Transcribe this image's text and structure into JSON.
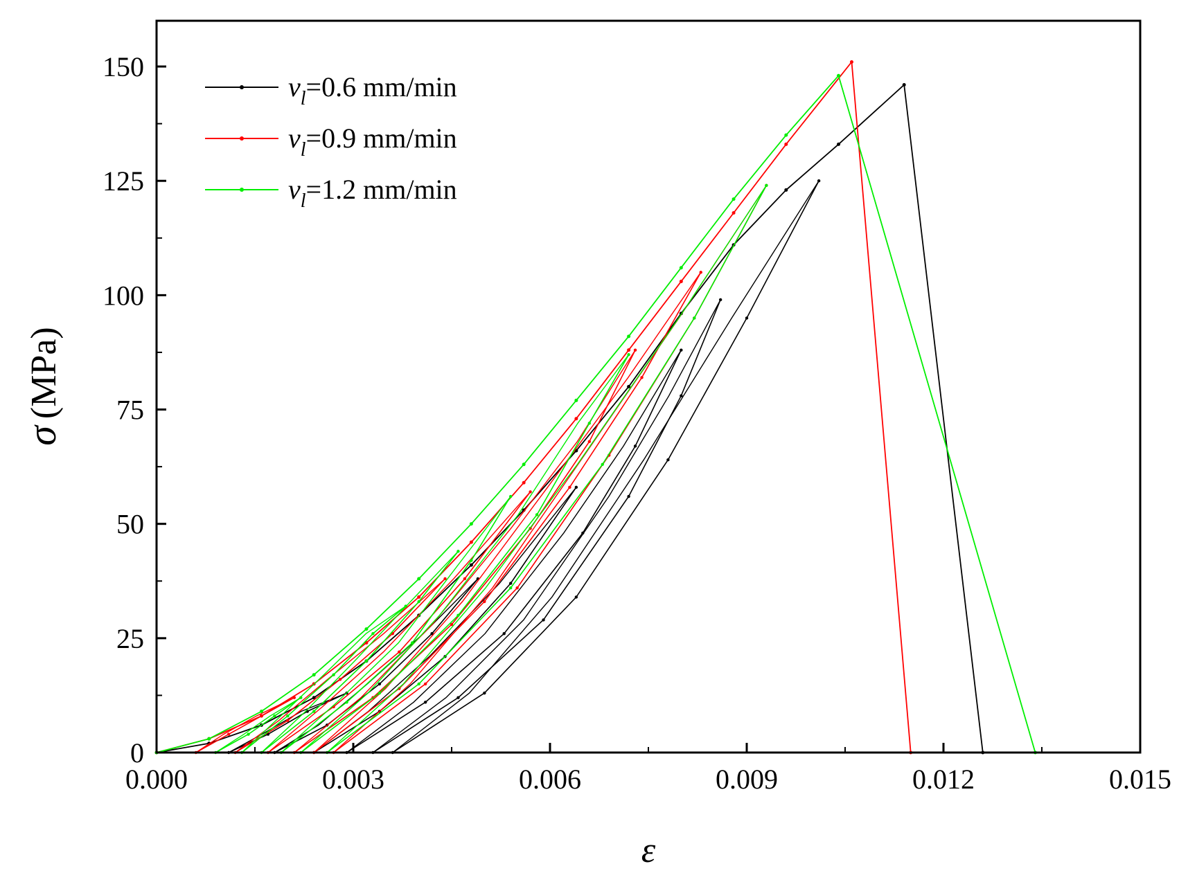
{
  "chart_data": {
    "type": "line",
    "title": "",
    "xlabel": "ε",
    "ylabel_symbol": "σ",
    "ylabel_unit": "(MPa)",
    "xlim": [
      0,
      0.015
    ],
    "ylim": [
      0,
      160
    ],
    "x_ticks": [
      0,
      0.003,
      0.006,
      0.009,
      0.012,
      0.015
    ],
    "x_tick_labels": [
      "0.000",
      "0.003",
      "0.006",
      "0.009",
      "0.012",
      "0.015"
    ],
    "y_ticks": [
      0,
      25,
      50,
      75,
      100,
      125,
      150
    ],
    "y_tick_labels": [
      "0",
      "25",
      "50",
      "75",
      "100",
      "125",
      "150"
    ],
    "legend_position": "top-left",
    "series": [
      {
        "name_symbol": "v",
        "name_sub": "l",
        "name_value": "=0.6 mm/min",
        "color": "#000000",
        "x": [
          0,
          0.0008,
          0.0016,
          0.0024,
          0.0032,
          0.004,
          0.0048,
          0.0056,
          0.0064,
          0.0072,
          0.008,
          0.0088,
          0.0096,
          0.0104,
          0.0114,
          0.0126
        ],
        "y": [
          0,
          2,
          6,
          12,
          20,
          30,
          41,
          53,
          66,
          80,
          96,
          111,
          123,
          133,
          146,
          0
        ],
        "cycles": [
          {
            "x": [
              0.0011,
              0.0017,
              0.0023,
              0.0029
            ],
            "y": [
              0,
              4,
              9,
              13
            ],
            "peak": [
              0.0029,
              13
            ]
          },
          {
            "x": [
              0.0018,
              0.0026,
              0.0034,
              0.0042,
              0.0049
            ],
            "y": [
              0,
              6,
              15,
              26,
              38
            ],
            "peak": [
              0.0049,
              38
            ]
          },
          {
            "x": [
              0.0024,
              0.0034,
              0.0044,
              0.0054,
              0.0064
            ],
            "y": [
              0,
              9,
              21,
              37,
              58
            ],
            "peak": [
              0.0064,
              58
            ]
          },
          {
            "x": [
              0.0029,
              0.0041,
              0.0053,
              0.0065,
              0.0073,
              0.008
            ],
            "y": [
              0,
              11,
              26,
              48,
              67,
              88
            ],
            "peak": [
              0.008,
              88
            ]
          },
          {
            "x": [
              0.0033,
              0.0046,
              0.0059,
              0.0072,
              0.008,
              0.0086
            ],
            "y": [
              0,
              12,
              29,
              56,
              78,
              99
            ],
            "peak": [
              0.0086,
              99
            ]
          },
          {
            "x": [
              0.0036,
              0.005,
              0.0064,
              0.0078,
              0.009,
              0.0101
            ],
            "y": [
              0,
              13,
              34,
              64,
              95,
              125
            ],
            "peak": [
              0.0101,
              125
            ]
          }
        ]
      },
      {
        "name_symbol": "v",
        "name_sub": "l",
        "name_value": "=0.9 mm/min",
        "color": "#ff0000",
        "x": [
          0,
          0.0008,
          0.0016,
          0.0024,
          0.0032,
          0.004,
          0.0048,
          0.0056,
          0.0064,
          0.0072,
          0.008,
          0.0088,
          0.0096,
          0.0106,
          0.0115
        ],
        "y": [
          0,
          3,
          8,
          15,
          24,
          34,
          46,
          59,
          73,
          88,
          103,
          118,
          133,
          151,
          0
        ],
        "cycles": [
          {
            "x": [
              0.0006,
              0.0011,
              0.0016,
              0.0021
            ],
            "y": [
              0,
              4,
              8,
              12
            ],
            "peak": [
              0.0021,
              12
            ]
          },
          {
            "x": [
              0.0012,
              0.002,
              0.0028,
              0.0036,
              0.0044
            ],
            "y": [
              0,
              7,
              16,
              26,
              38
            ],
            "peak": [
              0.0044,
              38
            ]
          },
          {
            "x": [
              0.0017,
              0.0027,
              0.0037,
              0.0047,
              0.0057
            ],
            "y": [
              0,
              10,
              22,
              38,
              57
            ],
            "peak": [
              0.0057,
              57
            ]
          },
          {
            "x": [
              0.0021,
              0.0033,
              0.0045,
              0.0057,
              0.0066,
              0.0073
            ],
            "y": [
              0,
              12,
              28,
              49,
              68,
              88
            ],
            "peak": [
              0.0073,
              88
            ]
          },
          {
            "x": [
              0.0024,
              0.0037,
              0.005,
              0.0063,
              0.0074,
              0.0083
            ],
            "y": [
              0,
              14,
              33,
              58,
              82,
              105
            ],
            "peak": [
              0.0083,
              105
            ]
          },
          {
            "x": [
              0.0027,
              0.0041,
              0.0055,
              0.0069,
              0.0082,
              0.0093
            ],
            "y": [
              0,
              15,
              36,
              65,
              95,
              124
            ],
            "peak": [
              0.0093,
              124
            ]
          }
        ]
      },
      {
        "name_symbol": "v",
        "name_sub": "l",
        "name_value": "=1.2 mm/min",
        "color": "#00ee00",
        "x": [
          0,
          0.0008,
          0.0016,
          0.0024,
          0.0032,
          0.004,
          0.0048,
          0.0056,
          0.0064,
          0.0072,
          0.008,
          0.0088,
          0.0096,
          0.0104,
          0.0134
        ],
        "y": [
          0,
          3,
          9,
          17,
          27,
          38,
          50,
          63,
          77,
          91,
          106,
          121,
          135,
          148,
          0
        ],
        "cycles": [
          {
            "x": [
              0.0009,
              0.0014,
              0.0018,
              0.0022
            ],
            "y": [
              0,
              4,
              8,
              12
            ],
            "peak": [
              0.0022,
              12
            ]
          },
          {
            "x": [
              0.0013,
              0.002,
              0.0027,
              0.0033,
              0.0038
            ],
            "y": [
              0,
              8,
              17,
              26,
              32
            ],
            "peak": [
              0.0038,
              32
            ]
          },
          {
            "x": [
              0.0016,
              0.0024,
              0.0032,
              0.004,
              0.0046
            ],
            "y": [
              0,
              9,
              20,
              33,
              44
            ],
            "peak": [
              0.0046,
              44
            ]
          },
          {
            "x": [
              0.0019,
              0.0029,
              0.0039,
              0.0048,
              0.0054
            ],
            "y": [
              0,
              11,
              24,
              42,
              56
            ],
            "peak": [
              0.0054,
              56
            ]
          },
          {
            "x": [
              0.0022,
              0.0034,
              0.0046,
              0.0058,
              0.0066,
              0.0072
            ],
            "y": [
              0,
              13,
              30,
              52,
              72,
              87
            ],
            "peak": [
              0.0072,
              87
            ]
          },
          {
            "x": [
              0.0026,
              0.004,
              0.0054,
              0.0068,
              0.0082,
              0.0093
            ],
            "y": [
              0,
              15,
              36,
              63,
              95,
              124
            ],
            "peak": [
              0.0093,
              124
            ]
          }
        ]
      }
    ]
  }
}
